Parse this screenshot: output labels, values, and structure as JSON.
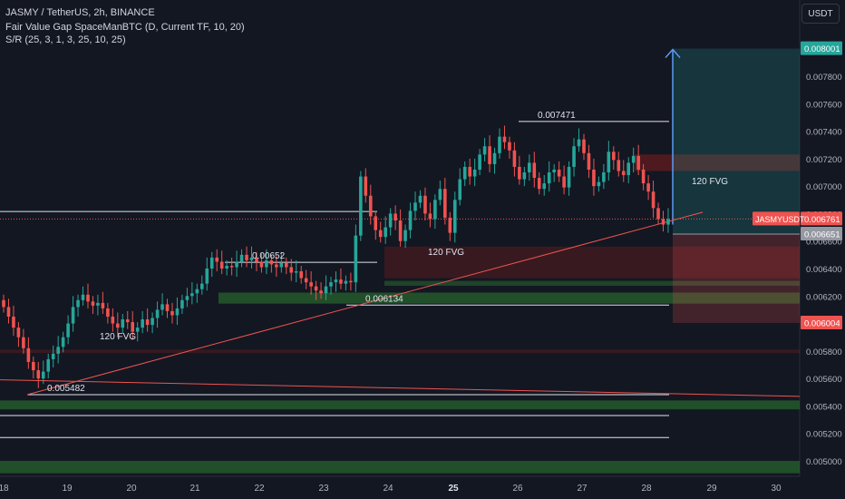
{
  "header": {
    "line1": "JASMY / TetherUS, 2h, BINANCE",
    "line2": "Fair Value Gap SpaceManBTC (D, Current TF, 10, 20)",
    "line3": "S/R (25, 3, 1, 3, 25, 10, 25)"
  },
  "currency_button": "USDT",
  "colors": {
    "bg": "#131722",
    "up": "#26a69a",
    "down": "#ef5350",
    "accent_blue": "#5b9cf6",
    "fvg_green": "#1b5e20",
    "fvg_red": "#7f1d1d"
  },
  "chart_data": {
    "type": "candlestick",
    "symbol": "JASMY / TetherUS",
    "timeframe": "2h",
    "exchange": "BINANCE",
    "y_ticks": [
      "0.005000",
      "0.005200",
      "0.005400",
      "0.005600",
      "0.005800",
      "0.006000",
      "0.006200",
      "0.006400",
      "0.006600",
      "0.006800",
      "0.007000",
      "0.007200",
      "0.007400",
      "0.007600",
      "0.007800"
    ],
    "x_ticks": [
      "18",
      "19",
      "20",
      "21",
      "22",
      "23",
      "24",
      "25",
      "26",
      "27",
      "28",
      "29",
      "30"
    ],
    "price_tags": {
      "target": "0.008001",
      "last": "0.006761",
      "last_label": "JASMYUSDT",
      "entry": "0.006651",
      "stop": "0.006004"
    },
    "labels": [
      {
        "text": "0.007471"
      },
      {
        "text": "0.00652"
      },
      {
        "text": "0.006134"
      },
      {
        "text": "0.005482"
      },
      {
        "text": "120 FVG"
      },
      {
        "text": "120 FVG"
      },
      {
        "text": "120 FVG"
      }
    ],
    "closes": [
      0.00612,
      0.00605,
      0.00597,
      0.0059,
      0.00582,
      0.00572,
      0.00566,
      0.0056,
      0.00565,
      0.00574,
      0.00578,
      0.00583,
      0.0059,
      0.006,
      0.00612,
      0.00617,
      0.00621,
      0.00616,
      0.00613,
      0.00615,
      0.00611,
      0.00605,
      0.006,
      0.00597,
      0.00603,
      0.00601,
      0.00594,
      0.00597,
      0.00603,
      0.00599,
      0.00604,
      0.0061,
      0.00614,
      0.00609,
      0.00606,
      0.00611,
      0.00617,
      0.0062,
      0.00622,
      0.00625,
      0.00629,
      0.0064,
      0.00648,
      0.00645,
      0.0064,
      0.00642,
      0.00641,
      0.00645,
      0.0065,
      0.00646,
      0.00648,
      0.00645,
      0.00641,
      0.00646,
      0.00643,
      0.00641,
      0.00644,
      0.00641,
      0.00637,
      0.00638,
      0.00633,
      0.0063,
      0.00627,
      0.00624,
      0.00622,
      0.00627,
      0.0063,
      0.00632,
      0.00629,
      0.00631,
      0.0063,
      0.00664,
      0.00707,
      0.00693,
      0.00678,
      0.00668,
      0.00663,
      0.0067,
      0.0068,
      0.00675,
      0.0066,
      0.00668,
      0.00682,
      0.00688,
      0.00693,
      0.0068,
      0.00676,
      0.0069,
      0.00698,
      0.00677,
      0.00666,
      0.0069,
      0.00705,
      0.00714,
      0.00707,
      0.00712,
      0.00723,
      0.00729,
      0.00716,
      0.00724,
      0.00736,
      0.00732,
      0.00726,
      0.00714,
      0.00705,
      0.0071,
      0.00717,
      0.00706,
      0.00698,
      0.00702,
      0.0071,
      0.00712,
      0.00707,
      0.00699,
      0.00714,
      0.00729,
      0.00734,
      0.00724,
      0.00712,
      0.007,
      0.00703,
      0.0071,
      0.00725,
      0.00719,
      0.00711,
      0.00708,
      0.00717,
      0.00722,
      0.00712,
      0.00702,
      0.00696,
      0.00684,
      0.00676,
      0.00672,
      0.00676
    ]
  }
}
